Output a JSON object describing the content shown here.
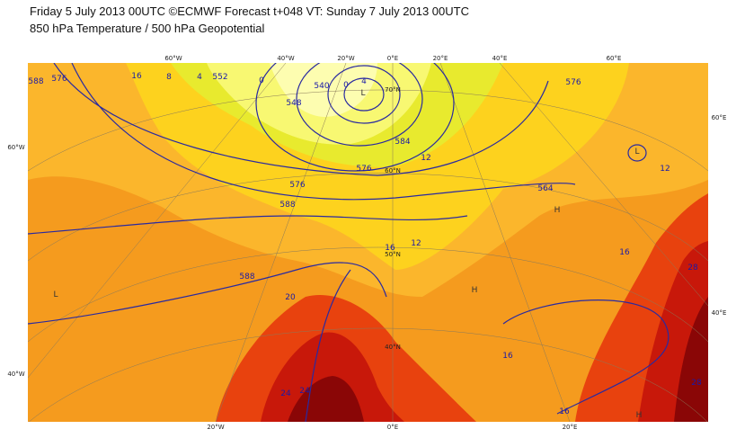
{
  "header": {
    "line1": "Friday 5 July 2013 00UTC ©ECMWF Forecast t+048 VT: Sunday 7 July 2013 00UTC",
    "line2": "850 hPa Temperature / 500 hPa Geopotential"
  },
  "map": {
    "lon_labels_top": [
      "60°W",
      "40°W",
      "20°W",
      "0°E",
      "20°E",
      "40°E",
      "60°E"
    ],
    "lon_labels_bottom": [
      "20°W",
      "0°E",
      "20°E"
    ],
    "lat_labels_left": [
      "60°W",
      "40°W"
    ],
    "lat_labels_right": [
      "60°E",
      "40°E"
    ],
    "lat_labels_inner": [
      "70°N",
      "60°N",
      "50°N",
      "40°N"
    ],
    "contour_labels": [
      "588",
      "576",
      "16",
      "8",
      "4",
      "552",
      "548",
      "0",
      "540",
      "0",
      "4",
      "584",
      "12",
      "576",
      "576",
      "576",
      "564",
      "588",
      "588",
      "12",
      "16",
      "16",
      "20",
      "24",
      "24",
      "28",
      "16",
      "16",
      "12",
      "28"
    ],
    "pressure_centers": [
      "L",
      "L",
      "L",
      "H",
      "H",
      "H"
    ]
  }
}
